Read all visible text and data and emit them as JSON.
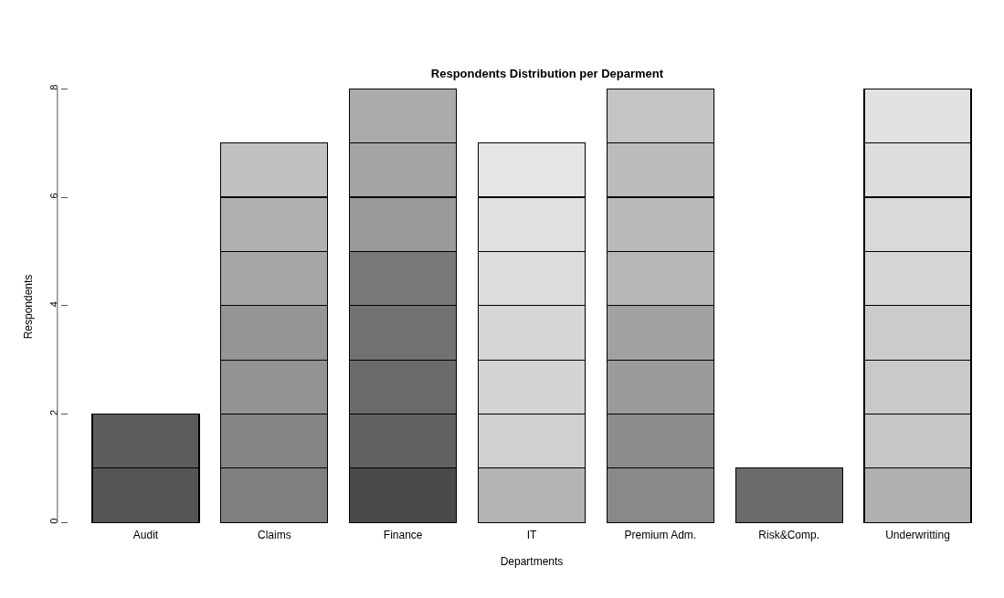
{
  "chart_data": {
    "type": "bar",
    "stacked": true,
    "title": "Respondents Distribution per Deparment",
    "xlabel": "Departments",
    "ylabel": "Respondents",
    "categories": [
      "Audit",
      "Claims",
      "Finance",
      "IT",
      "Premium Adm.",
      "Risk&Comp.",
      "Underwritting"
    ],
    "series": [
      {
        "values": [
          1,
          1,
          1,
          1,
          1,
          1,
          1
        ],
        "colors": [
          "#555555",
          "#7f7f7f",
          "#4a4a4a",
          "#b4b4b4",
          "#898989",
          "#6a6a6a",
          "#b0b0b0"
        ]
      },
      {
        "values": [
          1,
          1,
          1,
          1,
          1,
          null,
          1
        ],
        "colors": [
          "#5c5c5c",
          "#858585",
          "#626262",
          "#d0d0d0",
          "#8d8d8d",
          "#6a6a6a",
          "#c7c7c7"
        ]
      },
      {
        "values": [
          null,
          1,
          1,
          1,
          1,
          null,
          1
        ],
        "colors": [
          "#5c5c5c",
          "#939393",
          "#6b6b6b",
          "#d4d4d4",
          "#9b9b9b",
          "#6a6a6a",
          "#c9c9c9"
        ]
      },
      {
        "values": [
          null,
          1,
          1,
          1,
          1,
          null,
          1
        ],
        "colors": [
          "#5c5c5c",
          "#969696",
          "#727272",
          "#d6d6d6",
          "#a1a1a1",
          "#6a6a6a",
          "#cbcbcb"
        ]
      },
      {
        "values": [
          null,
          1,
          1,
          1,
          1,
          null,
          1
        ],
        "colors": [
          "#5c5c5c",
          "#a6a6a6",
          "#797979",
          "#dcdcdc",
          "#b7b7b7",
          "#6a6a6a",
          "#d6d6d6"
        ]
      },
      {
        "values": [
          null,
          1,
          1,
          1,
          1,
          null,
          1
        ],
        "colors": [
          "#5c5c5c",
          "#b0b0b0",
          "#9a9a9a",
          "#e1e1e1",
          "#bababa",
          "#6a6a6a",
          "#d9d9d9"
        ]
      },
      {
        "values": [
          null,
          1,
          1,
          1,
          1,
          null,
          1
        ],
        "colors": [
          "#5c5c5c",
          "#c1c1c1",
          "#a4a4a4",
          "#e6e6e6",
          "#bcbcbc",
          "#6a6a6a",
          "#dddddd"
        ]
      },
      {
        "values": [
          null,
          null,
          1,
          null,
          1,
          null,
          1
        ],
        "colors": [
          "#5c5c5c",
          "#c1c1c1",
          "#ababab",
          "#e6e6e6",
          "#c4c4c4",
          "#6a6a6a",
          "#e2e2e2"
        ]
      }
    ],
    "ylim": [
      0,
      8
    ],
    "yticks": [
      0,
      2,
      4,
      6,
      8
    ],
    "grid": false
  }
}
